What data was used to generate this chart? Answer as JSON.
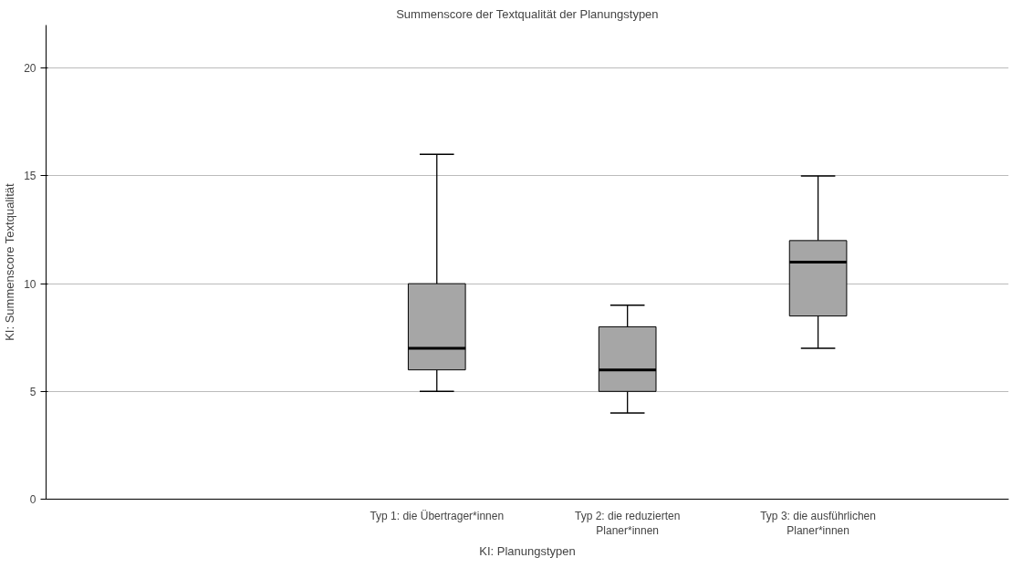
{
  "chart_data": {
    "type": "box",
    "title": "Summenscore der Textqualität der Planungstypen",
    "xlabel": "KI: Planungstypen",
    "ylabel": "KI: Summenscore Textqualität",
    "categories": [
      null,
      null,
      "Typ 1: die Übertrager*innen",
      "Typ 2: die reduzierten\nPlaner*innen",
      "Typ 3: die ausführlichen\nPlaner*innen"
    ],
    "boxes": [
      null,
      null,
      {
        "low": 5,
        "q1": 6,
        "median": 7,
        "q3": 10,
        "high": 16
      },
      {
        "low": 4,
        "q1": 5,
        "median": 6,
        "q3": 8,
        "high": 9
      },
      {
        "low": 7,
        "q1": 8.5,
        "median": 11,
        "q3": 12,
        "high": 15
      }
    ],
    "color": "#a6a6a6",
    "ylim": [
      0,
      22
    ],
    "yticks": [
      0,
      5,
      10,
      15,
      20
    ],
    "grid": "y"
  }
}
